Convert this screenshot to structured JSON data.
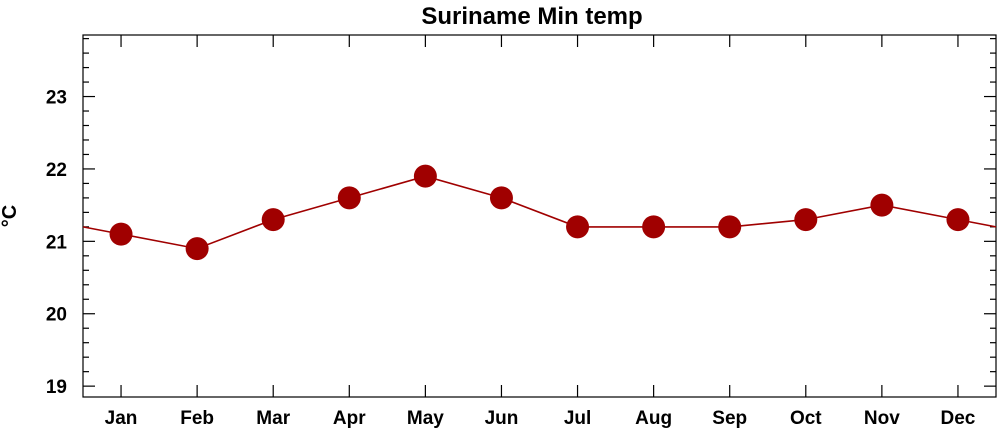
{
  "chart_data": {
    "type": "line",
    "title": "Suriname Min temp",
    "xlabel": "",
    "ylabel": "°C",
    "categories": [
      "Jan",
      "Feb",
      "Mar",
      "Apr",
      "May",
      "Jun",
      "Jul",
      "Aug",
      "Sep",
      "Oct",
      "Nov",
      "Dec"
    ],
    "series": [
      {
        "values": [
          21.1,
          20.9,
          21.3,
          21.6,
          21.9,
          21.6,
          21.2,
          21.2,
          21.2,
          21.3,
          21.5,
          21.3
        ]
      }
    ],
    "ylim": [
      18.85,
      23.85
    ],
    "yticks": [
      19,
      20,
      21,
      22,
      23
    ],
    "ytick_labels": [
      "19",
      "20",
      "21",
      "22",
      "23"
    ],
    "y_minor_step": 0.2,
    "line_wraps_around_edges": true,
    "grid": false,
    "legend": "none",
    "colors": {
      "line": "#a00000",
      "marker": "#a00000",
      "axes": "#000000"
    }
  }
}
